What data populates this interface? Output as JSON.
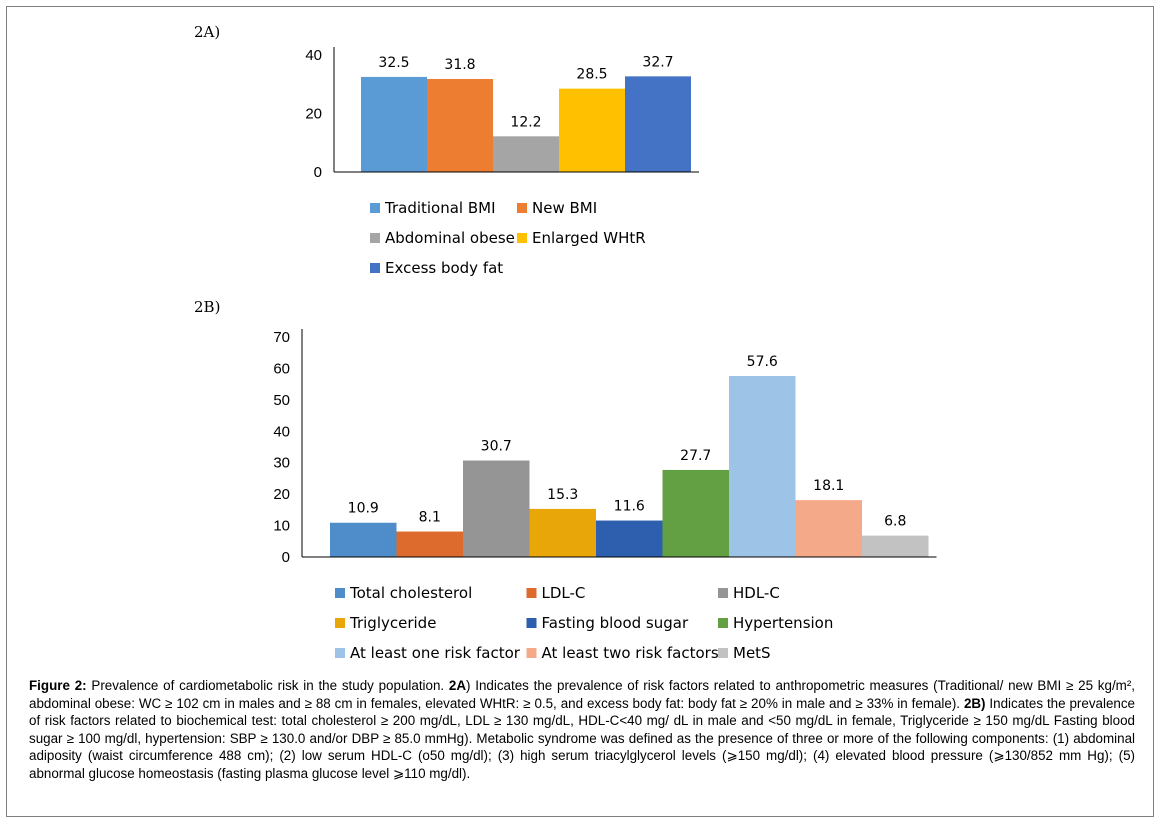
{
  "chart_data": [
    {
      "type": "bar",
      "panel_label": "2A)",
      "categories": [
        "Traditional BMI",
        "New BMI",
        "Abdominal obese",
        "Enlarged WHtR",
        "Excess body fat"
      ],
      "values": [
        32.5,
        31.8,
        12.2,
        28.5,
        32.7
      ],
      "data_labels": [
        "32.5",
        "31.8",
        "12.2",
        "28.5",
        "32.7"
      ],
      "colors": [
        "#5b9bd5",
        "#ed7d31",
        "#a5a5a5",
        "#ffc000",
        "#4472c4"
      ],
      "ylim": [
        0,
        40
      ],
      "yticks": [
        0,
        20,
        40
      ],
      "ytick_labels": [
        "0",
        "20",
        "40"
      ],
      "legend_placement": "bottom",
      "grid": false
    },
    {
      "type": "bar",
      "panel_label": "2B)",
      "categories": [
        "Total cholesterol",
        "LDL-C",
        "HDL-C",
        "Triglyceride",
        "Fasting blood sugar",
        "Hypertension",
        "At least one risk factor",
        "At least two risk factors",
        "MetS"
      ],
      "values": [
        10.9,
        8.1,
        30.7,
        15.3,
        11.6,
        27.7,
        57.6,
        18.1,
        6.8
      ],
      "data_labels": [
        "10.9",
        "8.1",
        "30.7",
        "15.3",
        "11.6",
        "27.7",
        "57.6",
        "18.1",
        "6.8"
      ],
      "colors": [
        "#4e8dc9",
        "#dc6b2d",
        "#959595",
        "#e8a608",
        "#2e5faf",
        "#62a043",
        "#9dc3e6",
        "#f4a988",
        "#c2c2c2"
      ],
      "ylim": [
        0,
        70
      ],
      "yticks": [
        0,
        10,
        20,
        30,
        40,
        50,
        60,
        70
      ],
      "ytick_labels": [
        "0",
        "10",
        "20",
        "30",
        "40",
        "50",
        "60",
        "70"
      ],
      "legend_placement": "bottom",
      "grid": false
    }
  ],
  "caption": {
    "figure_label": "Figure 2:",
    "intro": " Prevalence of cardiometabolic risk in the study population. ",
    "part_a_label": "2A",
    "part_a_text": ") Indicates the prevalence of risk factors related to anthropometric measures (Traditional/ new BMI  ≥  25 kg/m², abdominal obese: WC  ≥  102 cm in males and  ≥  88 cm in females, elevated WHtR:  ≥  0.5, and excess body fat: body fat  ≥  20% in male and  ≥  33% in female). ",
    "part_b_label": "2B)",
    "part_b_text": " Indicates the prevalence of risk factors related to biochemical test: total cholesterol ≥ 200 mg/dL, LDL ≥ 130 mg/dL, HDL-C<40 mg/ dL in male and <50 mg/dL in female, Triglyceride ≥ 150 mg/dL Fasting blood sugar  ≥ 100 mg/dl, hypertension: SBP ≥ 130.0 and/or DBP ≥ 85.0 mmHg). Metabolic syndrome was defined as the presence of three or more of the following components: (1) abdominal adiposity (waist circumference 488 cm); (2) low serum HDL-C (o50 mg/dl); (3) high serum triacylglycerol levels (⩾150 mg/dl); (4) elevated blood pressure (⩾130/852 mm Hg); (5) abnormal glucose homeostasis (fasting plasma glucose level ⩾110 mg/dl)."
  }
}
